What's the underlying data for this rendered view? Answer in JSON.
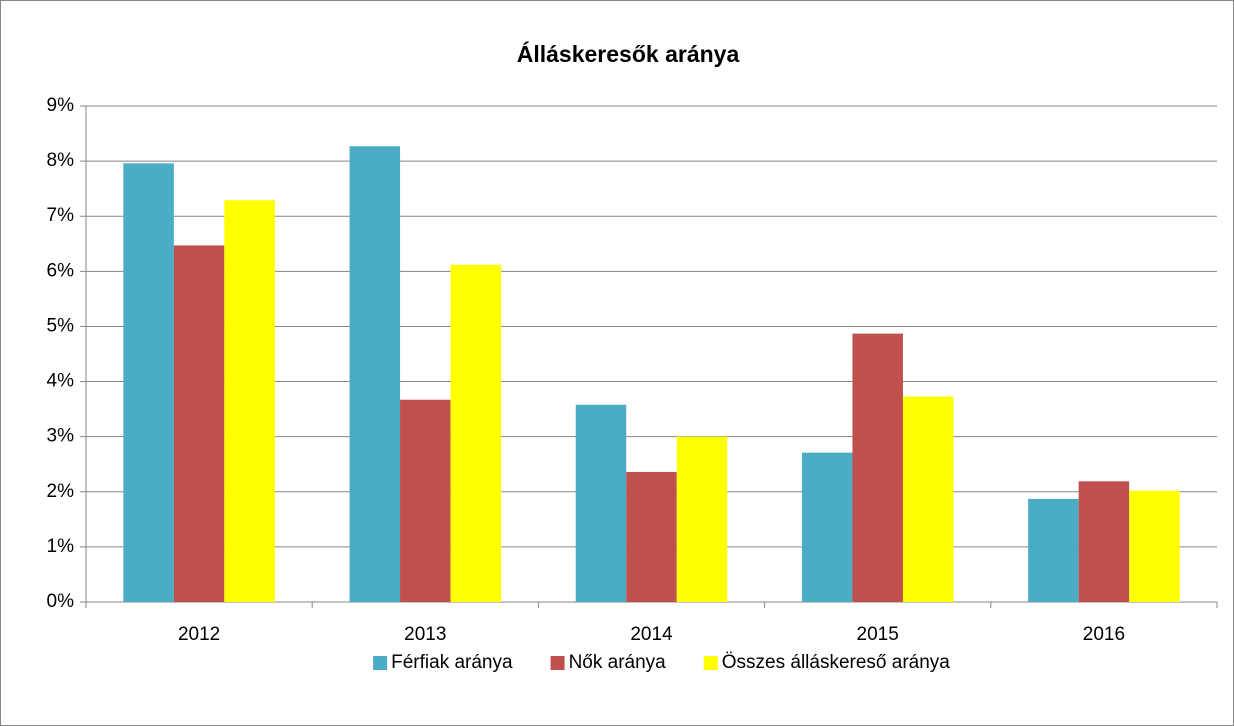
{
  "chart_data": {
    "type": "bar",
    "title": "Álláskeresők aránya",
    "categories": [
      "2012",
      "2013",
      "2014",
      "2015",
      "2016"
    ],
    "series": [
      {
        "name": "Férfiak aránya",
        "color": "#4bacc6",
        "values": [
          7.96,
          8.27,
          3.58,
          2.71,
          1.87
        ]
      },
      {
        "name": "Nők aránya",
        "color": "#c0504d",
        "values": [
          6.47,
          3.67,
          2.36,
          4.87,
          2.19
        ]
      },
      {
        "name": "Összes álláskereső aránya",
        "color": "#ffff00",
        "values": [
          7.29,
          6.12,
          3.0,
          3.73,
          2.02
        ]
      }
    ],
    "ylim": [
      0,
      9
    ],
    "yticks": [
      {
        "value": 0,
        "label": "0%"
      },
      {
        "value": 1,
        "label": "1%"
      },
      {
        "value": 2,
        "label": "2%"
      },
      {
        "value": 3,
        "label": "3%"
      },
      {
        "value": 4,
        "label": "4%"
      },
      {
        "value": 5,
        "label": "5%"
      },
      {
        "value": 6,
        "label": "6%"
      },
      {
        "value": 7,
        "label": "7%"
      },
      {
        "value": 8,
        "label": "8%"
      },
      {
        "value": 9,
        "label": "9%"
      }
    ],
    "grid": true,
    "legend": "bottom"
  }
}
